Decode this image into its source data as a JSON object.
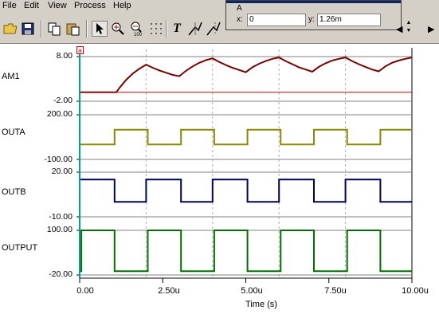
{
  "menu": {
    "items": [
      "File",
      "Edit",
      "View",
      "Process",
      "Help"
    ]
  },
  "toolbar": {
    "buttons": [
      {
        "name": "open-folder-icon"
      },
      {
        "name": "save-icon"
      },
      {
        "name": "copy-icon"
      },
      {
        "name": "paste-icon"
      },
      {
        "name": "select-arrow-icon"
      },
      {
        "name": "zoom-in-icon"
      },
      {
        "name": "zoom-100-icon"
      },
      {
        "name": "grid-icon"
      },
      {
        "name": "text-tool-icon"
      },
      {
        "name": "cursor-a-icon"
      },
      {
        "name": "cursor-b-icon"
      }
    ],
    "zoom100_label": "100",
    "text_tool_label": "T"
  },
  "cursor_panel": {
    "title": "A",
    "x_label": "x:",
    "x_value": "0",
    "y_label": "y:",
    "y_value": "1.26m"
  },
  "marker_label": "a",
  "colors": {
    "AM1": "#7a0000",
    "AM1_ref": "#c00000",
    "OUTA": "#8a8a00",
    "OUTB": "#000060",
    "OUTPUT": "#007000",
    "axis": "#00a0a0",
    "grid": "#b0b0b0"
  },
  "chart_data": {
    "type": "line",
    "xlabel": "Time (s)",
    "x_range": [
      0,
      10
    ],
    "x_unit_suffix": "u",
    "x_ticks": [
      "0.00",
      "2.50u",
      "5.00u",
      "7.50u",
      "10.00u"
    ],
    "grid": true,
    "panels": [
      {
        "name": "AM1",
        "ylim": [
          -2,
          8
        ],
        "y_ticks": [
          "8.00",
          "-2.00"
        ],
        "series": [
          {
            "name": "AM1",
            "x": [
              0,
              1.1,
              1.2,
              1.4,
              1.6,
              1.8,
              2.0,
              2.2,
              2.4,
              2.6,
              2.8,
              3.0,
              3.2,
              3.4,
              3.6,
              3.8,
              4.0,
              4.2,
              4.4,
              4.6,
              4.8,
              5.0,
              5.2,
              5.4,
              5.6,
              5.8,
              6.0,
              6.2,
              6.4,
              6.6,
              6.8,
              7.0,
              7.2,
              7.4,
              7.6,
              7.8,
              8.0,
              8.2,
              8.4,
              8.6,
              8.8,
              9.0,
              9.2,
              9.4,
              9.6,
              9.8,
              10.0
            ],
            "y": [
              0,
              0,
              1.0,
              2.8,
              4.2,
              5.3,
              6.2,
              5.5,
              4.9,
              4.4,
              3.9,
              3.6,
              4.8,
              5.8,
              6.6,
              7.2,
              7.6,
              6.8,
              6.1,
              5.5,
              5.0,
              4.5,
              5.6,
              6.4,
              7.0,
              7.5,
              7.8,
              7.0,
              6.3,
              5.6,
              5.1,
              4.6,
              5.7,
              6.5,
              7.1,
              7.5,
              7.8,
              7.0,
              6.3,
              5.7,
              5.1,
              4.7,
              5.8,
              6.6,
              7.1,
              7.5,
              7.8
            ]
          }
        ],
        "reference_y": 0
      },
      {
        "name": "OUTA",
        "ylim": [
          -100,
          200
        ],
        "y_ticks": [
          "200.00",
          "-100.00"
        ],
        "series": [
          {
            "name": "OUTA",
            "period": 2.0,
            "high_start": 1.05,
            "high_duration": 1.0,
            "low": 0,
            "high": 100
          }
        ]
      },
      {
        "name": "OUTB",
        "ylim": [
          -10,
          20
        ],
        "y_ticks": [
          "20.00",
          "-10.00"
        ],
        "series": [
          {
            "name": "OUTB",
            "period": 2.0,
            "high_start": 0.0,
            "high_duration": 1.05,
            "low": 0,
            "high": 15
          }
        ]
      },
      {
        "name": "OUTPUT",
        "ylim": [
          -20,
          100
        ],
        "y_ticks": [
          "100.00",
          "-20.00"
        ],
        "series": [
          {
            "name": "OUTPUT",
            "period": 2.0,
            "high_start": 0.05,
            "high_duration": 1.0,
            "low": -10,
            "high": 100
          }
        ]
      }
    ]
  }
}
